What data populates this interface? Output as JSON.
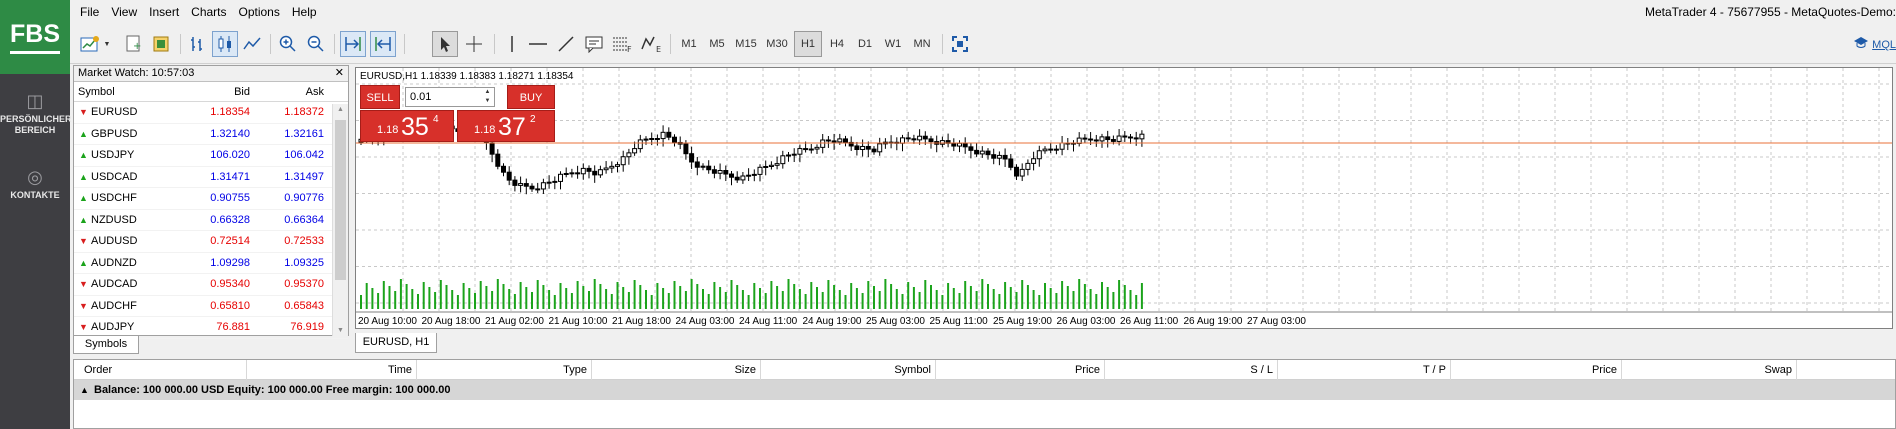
{
  "sidebar": {
    "logo": "FBS",
    "items": [
      {
        "label_line1": "PERSÖNLICHER",
        "label_line2": "BEREICH",
        "icon": "gamepad-icon"
      },
      {
        "label_line1": "KONTAKTE",
        "label_line2": "",
        "icon": "globe-icon"
      }
    ]
  },
  "menu": {
    "items": [
      "File",
      "View",
      "Insert",
      "Charts",
      "Options",
      "Help"
    ],
    "title": "MetaTrader 4 - 75677955 - MetaQuotes-Demo: "
  },
  "toolbar": {
    "timeframes": [
      "M1",
      "M5",
      "M15",
      "M30",
      "H1",
      "H4",
      "D1",
      "W1",
      "MN"
    ],
    "active_timeframe": "H1",
    "link": "MQL"
  },
  "market_watch": {
    "title": "Market Watch: 10:57:03",
    "headers": {
      "symbol": "Symbol",
      "bid": "Bid",
      "ask": "Ask"
    },
    "rows": [
      {
        "symbol": "EURUSD",
        "bid": "1.18354",
        "ask": "1.18372",
        "dir": "down"
      },
      {
        "symbol": "GBPUSD",
        "bid": "1.32140",
        "ask": "1.32161",
        "dir": "up"
      },
      {
        "symbol": "USDJPY",
        "bid": "106.020",
        "ask": "106.042",
        "dir": "up"
      },
      {
        "symbol": "USDCAD",
        "bid": "1.31471",
        "ask": "1.31497",
        "dir": "up"
      },
      {
        "symbol": "USDCHF",
        "bid": "0.90755",
        "ask": "0.90776",
        "dir": "up"
      },
      {
        "symbol": "NZDUSD",
        "bid": "0.66328",
        "ask": "0.66364",
        "dir": "up"
      },
      {
        "symbol": "AUDUSD",
        "bid": "0.72514",
        "ask": "0.72533",
        "dir": "down"
      },
      {
        "symbol": "AUDNZD",
        "bid": "1.09298",
        "ask": "1.09325",
        "dir": "up"
      },
      {
        "symbol": "AUDCAD",
        "bid": "0.95340",
        "ask": "0.95370",
        "dir": "down"
      },
      {
        "symbol": "AUDCHF",
        "bid": "0.65810",
        "ask": "0.65843",
        "dir": "down"
      },
      {
        "symbol": "AUDJPY",
        "bid": "76.881",
        "ask": "76.919",
        "dir": "down"
      }
    ],
    "tab": "Symbols"
  },
  "chart": {
    "info": "EURUSD,H1  1.18339 1.18383 1.18271 1.18354",
    "tab": "EURUSD, H1",
    "one_click": {
      "sell_label": "SELL",
      "buy_label": "BUY",
      "lot": "0.01",
      "sell_small": "1.18",
      "sell_big": "35",
      "sell_sup": "4",
      "buy_small": "1.18",
      "buy_big": "37",
      "buy_sup": "2"
    },
    "x_labels": [
      "20 Aug 10:00",
      "20 Aug 18:00",
      "21 Aug 02:00",
      "21 Aug 10:00",
      "21 Aug 18:00",
      "24 Aug 03:00",
      "24 Aug 11:00",
      "24 Aug 19:00",
      "25 Aug 03:00",
      "25 Aug 11:00",
      "25 Aug 19:00",
      "26 Aug 03:00",
      "26 Aug 11:00",
      "26 Aug 19:00",
      "27 Aug 03:00"
    ]
  },
  "terminal": {
    "columns": [
      "Order",
      "Time",
      "Type",
      "Size",
      "Symbol",
      "Price",
      "S / L",
      "T / P",
      "Price",
      "Swap"
    ],
    "balance": "Balance: 100 000.00 USD  Equity: 100 000.00  Free margin: 100 000.00"
  },
  "colors": {
    "brand": "#2e8b45",
    "sell_buy": "#d7302a",
    "volume": "#1ba31b",
    "price_line": "#e8703a"
  }
}
